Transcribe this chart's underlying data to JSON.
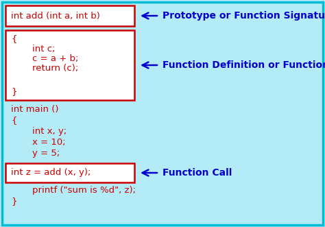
{
  "bg_color": "#b3ecf7",
  "border_color": "#00bcd4",
  "box_color": "#cc0000",
  "code_color": "#cc0000",
  "label_color": "#0000cc",
  "arrow_color": "#0000cc",
  "box1_text": "int add (int a, int b)",
  "box1_label": "Prototype or Function Signature",
  "box2_lines": [
    "{",
    "    int c;",
    "    c = a + b;",
    "    return (c);",
    "}"
  ],
  "box2_label": "Function Definition or Function Body",
  "main_lines": [
    "int main ()",
    "{",
    "    int x, y;",
    "    x = 10;",
    "    y = 5;"
  ],
  "box3_text": "    int z = add (x, y);",
  "box3_label": "Function Call",
  "bottom_lines": [
    "    printf (\"sum is %d\", z);",
    "}"
  ],
  "code_fontsize": 9.5,
  "label_fontsize": 10.0
}
